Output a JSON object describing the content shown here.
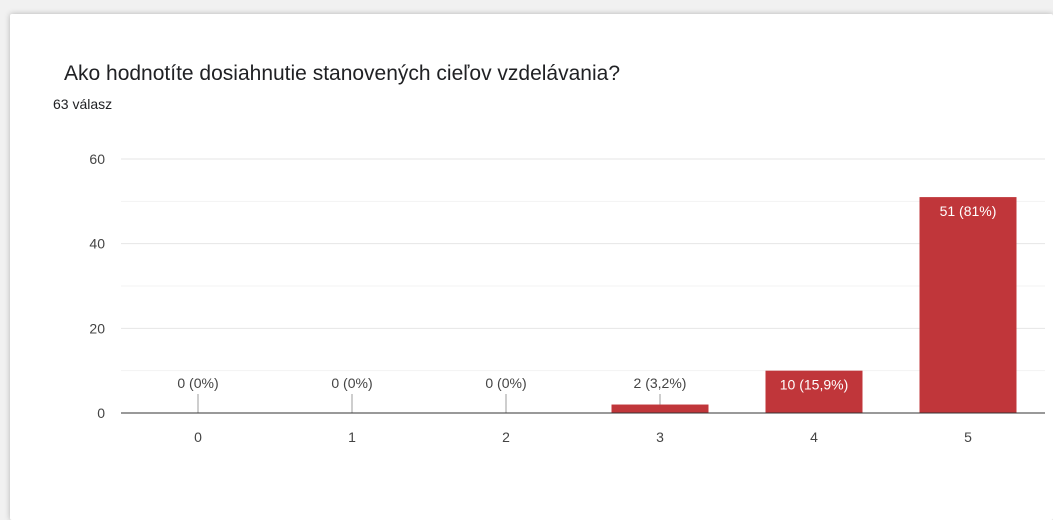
{
  "chart_data": {
    "type": "bar",
    "title": "Ako hodnotíte dosiahnutie stanovených cieľov vzdelávania?",
    "subtitle": "63 válasz",
    "categories": [
      "0",
      "1",
      "2",
      "3",
      "4",
      "5"
    ],
    "values": [
      0,
      0,
      0,
      2,
      10,
      51
    ],
    "data_labels": [
      "0 (0%)",
      "0 (0%)",
      "0 (0%)",
      "2 (3,2%)",
      "10 (15,9%)",
      "51 (81%)"
    ],
    "yticks": [
      0,
      20,
      40,
      60
    ],
    "ylim": [
      0,
      60
    ],
    "xlabel": "",
    "ylabel": "",
    "bar_color": "#c0363a",
    "grid": true,
    "legend": "none"
  }
}
